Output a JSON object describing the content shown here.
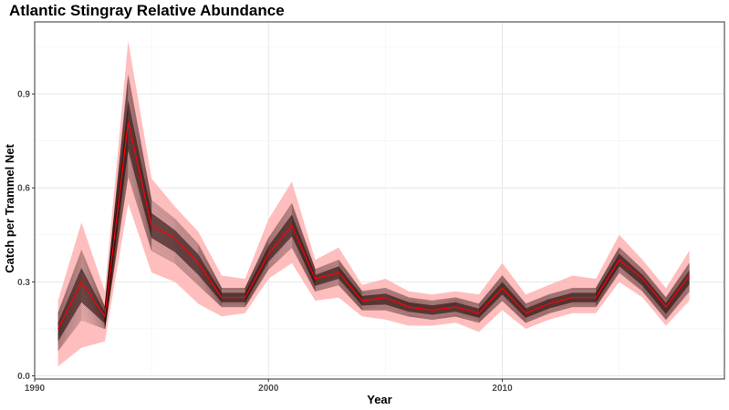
{
  "chart_data": {
    "type": "line",
    "title": "Atlantic Stingray Relative Abundance",
    "xlabel": "Year",
    "ylabel": "Catch per Trammel Net",
    "xlim": [
      1990,
      2019.5
    ],
    "ylim": [
      -0.01,
      1.13
    ],
    "x_ticks": [
      1990,
      2000,
      2010
    ],
    "y_ticks": [
      0.0,
      0.3,
      0.6,
      0.9
    ],
    "y_tick_labels": [
      "0.0",
      "0.3",
      "0.6",
      "0.9"
    ],
    "grid": true,
    "legend": "none",
    "x": [
      1991,
      1992,
      1993,
      1994,
      1995,
      1996,
      1997,
      1998,
      1999,
      2000,
      2001,
      2002,
      2003,
      2004,
      2005,
      2006,
      2007,
      2008,
      2009,
      2010,
      2011,
      2012,
      2013,
      2014,
      2015,
      2016,
      2017,
      2018
    ],
    "series": [
      {
        "role": "median",
        "color": "#ff0000",
        "values": [
          0.15,
          0.3,
          0.19,
          0.81,
          0.48,
          0.44,
          0.36,
          0.25,
          0.25,
          0.39,
          0.48,
          0.31,
          0.33,
          0.24,
          0.25,
          0.22,
          0.21,
          0.22,
          0.2,
          0.28,
          0.2,
          0.23,
          0.25,
          0.25,
          0.37,
          0.31,
          0.22,
          0.32
        ]
      },
      {
        "role": "interval",
        "color": "#ffb3b3",
        "lower": [
          0.03,
          0.09,
          0.11,
          0.55,
          0.33,
          0.3,
          0.23,
          0.19,
          0.2,
          0.31,
          0.36,
          0.24,
          0.25,
          0.19,
          0.18,
          0.16,
          0.16,
          0.17,
          0.14,
          0.21,
          0.15,
          0.18,
          0.2,
          0.2,
          0.3,
          0.25,
          0.16,
          0.24
        ],
        "upper": [
          0.24,
          0.49,
          0.27,
          1.07,
          0.63,
          0.54,
          0.46,
          0.32,
          0.31,
          0.5,
          0.62,
          0.37,
          0.41,
          0.29,
          0.31,
          0.27,
          0.26,
          0.27,
          0.26,
          0.36,
          0.26,
          0.29,
          0.32,
          0.31,
          0.45,
          0.37,
          0.28,
          0.4
        ]
      },
      {
        "role": "replicate-band",
        "color": "#1a0000",
        "lower": [
          0.08,
          0.18,
          0.15,
          0.64,
          0.4,
          0.36,
          0.29,
          0.22,
          0.22,
          0.34,
          0.41,
          0.27,
          0.29,
          0.21,
          0.21,
          0.19,
          0.18,
          0.19,
          0.17,
          0.24,
          0.17,
          0.2,
          0.22,
          0.22,
          0.33,
          0.27,
          0.18,
          0.27
        ],
        "upper": [
          0.2,
          0.4,
          0.22,
          0.96,
          0.56,
          0.5,
          0.42,
          0.28,
          0.28,
          0.44,
          0.55,
          0.34,
          0.37,
          0.27,
          0.28,
          0.25,
          0.24,
          0.25,
          0.23,
          0.32,
          0.23,
          0.26,
          0.28,
          0.28,
          0.41,
          0.34,
          0.25,
          0.36
        ]
      }
    ]
  }
}
